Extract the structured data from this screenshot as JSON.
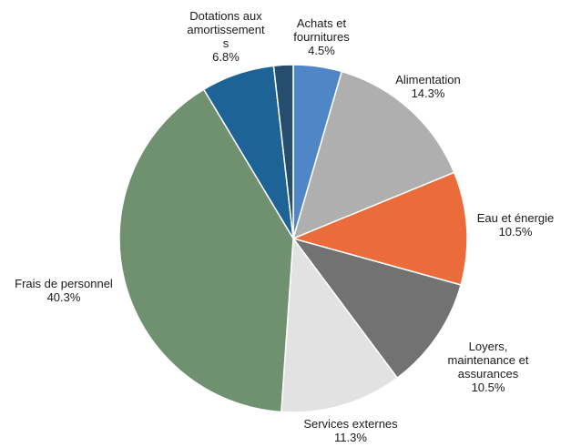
{
  "chart_data": {
    "type": "pie",
    "title": "",
    "start_angle_deg": 0,
    "direction": "clockwise",
    "slices": [
      {
        "label_lines": [
          "Achats et",
          "fournitures"
        ],
        "value": 4.5,
        "value_text": "4.5%",
        "color": "#4f86c6"
      },
      {
        "label_lines": [
          "Alimentation"
        ],
        "value": 14.3,
        "value_text": "14.3%",
        "color": "#afafaf"
      },
      {
        "label_lines": [
          "Eau et énergie"
        ],
        "value": 10.5,
        "value_text": "10.5%",
        "color": "#ec6b3b"
      },
      {
        "label_lines": [
          "Loyers,",
          "maintenance et",
          "assurances"
        ],
        "value": 10.5,
        "value_text": "10.5%",
        "color": "#727272"
      },
      {
        "label_lines": [
          "Services externes"
        ],
        "value": 11.3,
        "value_text": "11.3%",
        "color": "#e2e2e2"
      },
      {
        "label_lines": [
          "Frais de personnel"
        ],
        "value": 40.3,
        "value_text": "40.3%",
        "color": "#6f9170"
      },
      {
        "label_lines": [
          "Dotations aux",
          "amortissement",
          "s"
        ],
        "value": 6.8,
        "value_text": "6.8%",
        "color": "#1e6396"
      },
      {
        "label_lines": [],
        "value": 1.8,
        "value_text": "",
        "color": "#264d6e"
      }
    ]
  }
}
